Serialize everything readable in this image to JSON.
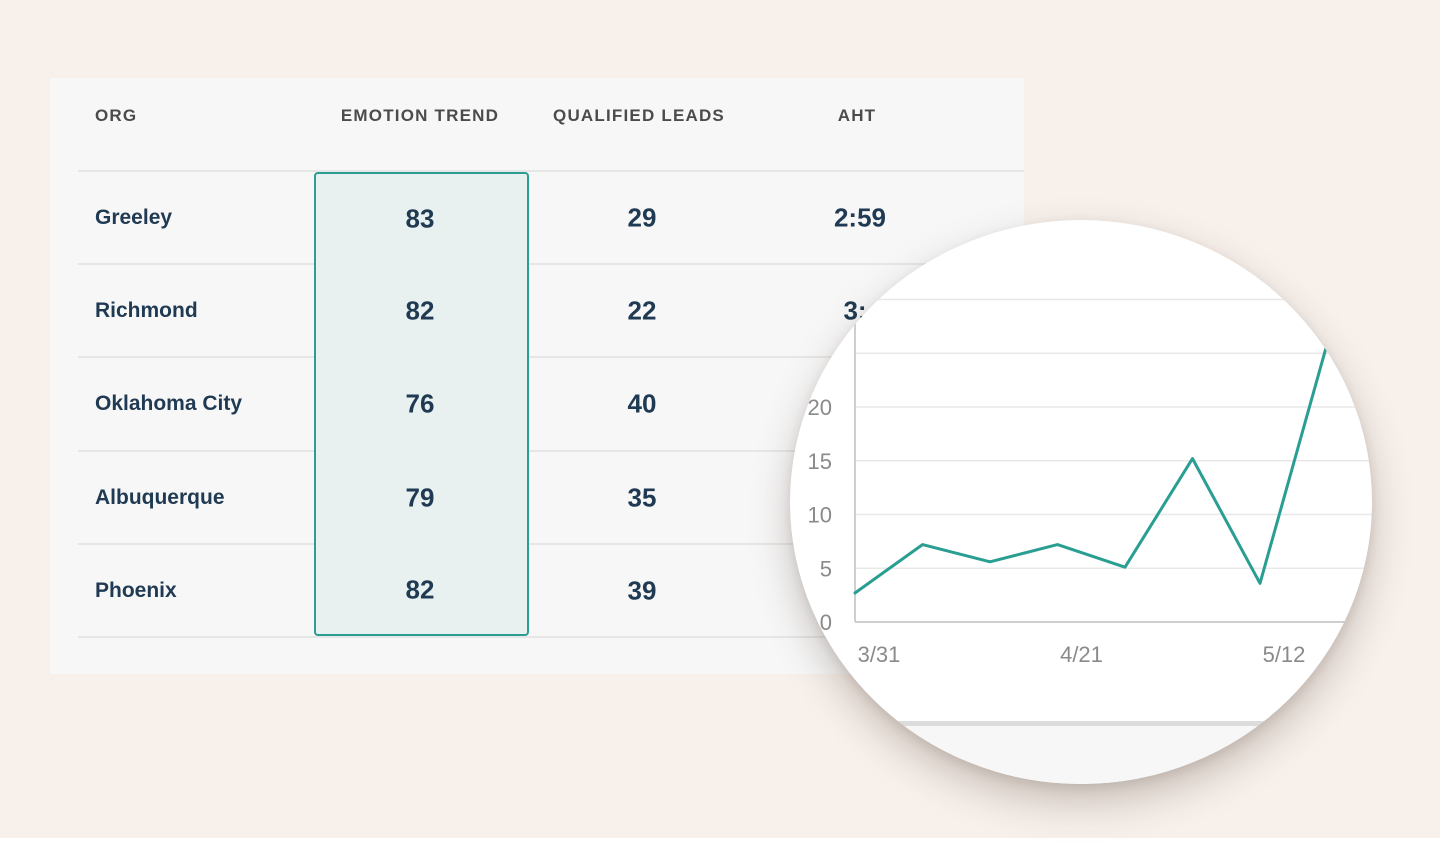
{
  "table": {
    "headers": {
      "org": "ORG",
      "emotion_trend": "EMOTION TREND",
      "qualified_leads": "QUALIFIED LEADS",
      "aht": "AHT"
    },
    "rows": [
      {
        "org": "Greeley",
        "emotion_trend": "83",
        "qualified_leads": "29",
        "aht": "2:59"
      },
      {
        "org": "Richmond",
        "emotion_trend": "82",
        "qualified_leads": "22",
        "aht": "3:"
      },
      {
        "org": "Oklahoma City",
        "emotion_trend": "76",
        "qualified_leads": "40",
        "aht": ""
      },
      {
        "org": "Albuquerque",
        "emotion_trend": "79",
        "qualified_leads": "35",
        "aht": ""
      },
      {
        "org": "Phoenix",
        "emotion_trend": "82",
        "qualified_leads": "39",
        "aht": ""
      }
    ]
  },
  "colors": {
    "accent": "#2a9e92",
    "highlight_fill": "#e8f1f0",
    "text_dark": "#1f3a52",
    "background": "#f7f0eb"
  },
  "chart_data": {
    "type": "line",
    "y_ticks": [
      "0",
      "5",
      "10",
      "15",
      "20"
    ],
    "x_ticks": [
      {
        "label": "3/31",
        "index": 0
      },
      {
        "label": "4/21",
        "index": 3
      },
      {
        "label": "5/12",
        "index": 6
      }
    ],
    "values": [
      2.7,
      7.2,
      5.6,
      7.2,
      5.1,
      15.2,
      3.6,
      26
    ],
    "ylim": [
      0,
      30
    ],
    "grid": true
  }
}
